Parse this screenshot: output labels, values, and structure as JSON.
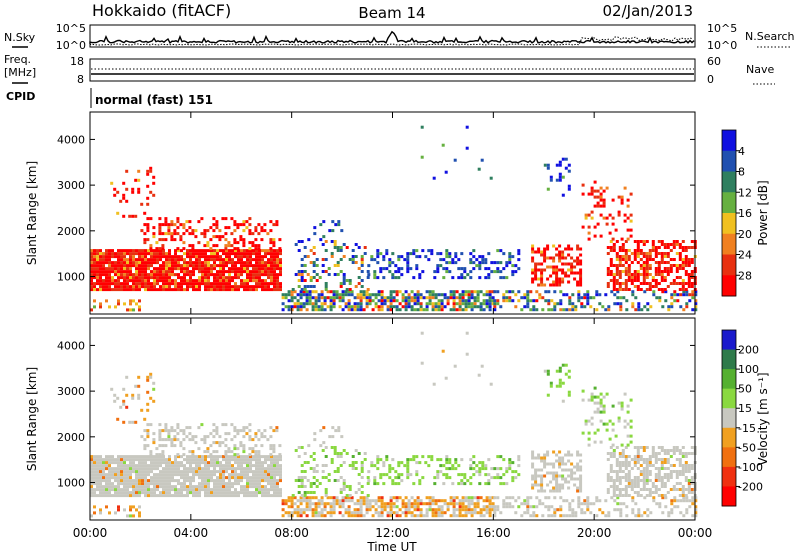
{
  "header": {
    "station": "Hokkaido (fitACF)",
    "beam": "Beam 14",
    "date": "02/Jan/2013"
  },
  "top_panels": {
    "nsky_label": "N.Sky",
    "nsearch_label": "N.Search",
    "freq_label": "Freq.",
    "freq_unit": "[MHz]",
    "nave_label": "Nave",
    "cpid_label": "CPID",
    "cpid_text": "normal (fast) 151",
    "nsky_ticks": [
      "10^5",
      "10^0"
    ],
    "nsearch_ticks": [
      "10^5",
      "10^0"
    ],
    "freq_ticks": [
      "18",
      "8"
    ],
    "nave_ticks": [
      "60",
      "0"
    ]
  },
  "chart_data": [
    {
      "type": "heatmap",
      "quantity": "power",
      "ylabel": "Slant Range [km]",
      "yticks": [
        1000,
        2000,
        3000,
        4000
      ],
      "ylim": [
        180,
        4600
      ],
      "xlim": [
        0,
        24
      ],
      "colorbar": {
        "label": "Power [dB]",
        "ticks": [
          "4",
          "8",
          "12",
          "16",
          "20",
          "24",
          "28"
        ],
        "colors": [
          "#1010e0",
          "#2050b0",
          "#2f7f5f",
          "#66b040",
          "#f0c020",
          "#f08020",
          "#e83010",
          "#ff0000"
        ]
      }
    },
    {
      "type": "heatmap",
      "quantity": "velocity",
      "ylabel": "Slant Range [km]",
      "yticks": [
        1000,
        2000,
        3000,
        4000
      ],
      "ylim": [
        180,
        4600
      ],
      "xlim": [
        0,
        24
      ],
      "colorbar": {
        "label": "Velocity [m s⁻¹]",
        "ticks": [
          "200",
          "100",
          "50",
          "15",
          "-15",
          "-50",
          "-100",
          "-200"
        ],
        "colors": [
          "#1a1acc",
          "#2e7a4a",
          "#55b030",
          "#8ad840",
          "#c8c8c0",
          "#f0a020",
          "#f07010",
          "#f03010",
          "#ff0000"
        ]
      }
    }
  ],
  "xaxis": {
    "ticks": [
      "00:00",
      "04:00",
      "08:00",
      "12:00",
      "16:00",
      "20:00",
      "00:00"
    ],
    "label": "Time UT"
  }
}
